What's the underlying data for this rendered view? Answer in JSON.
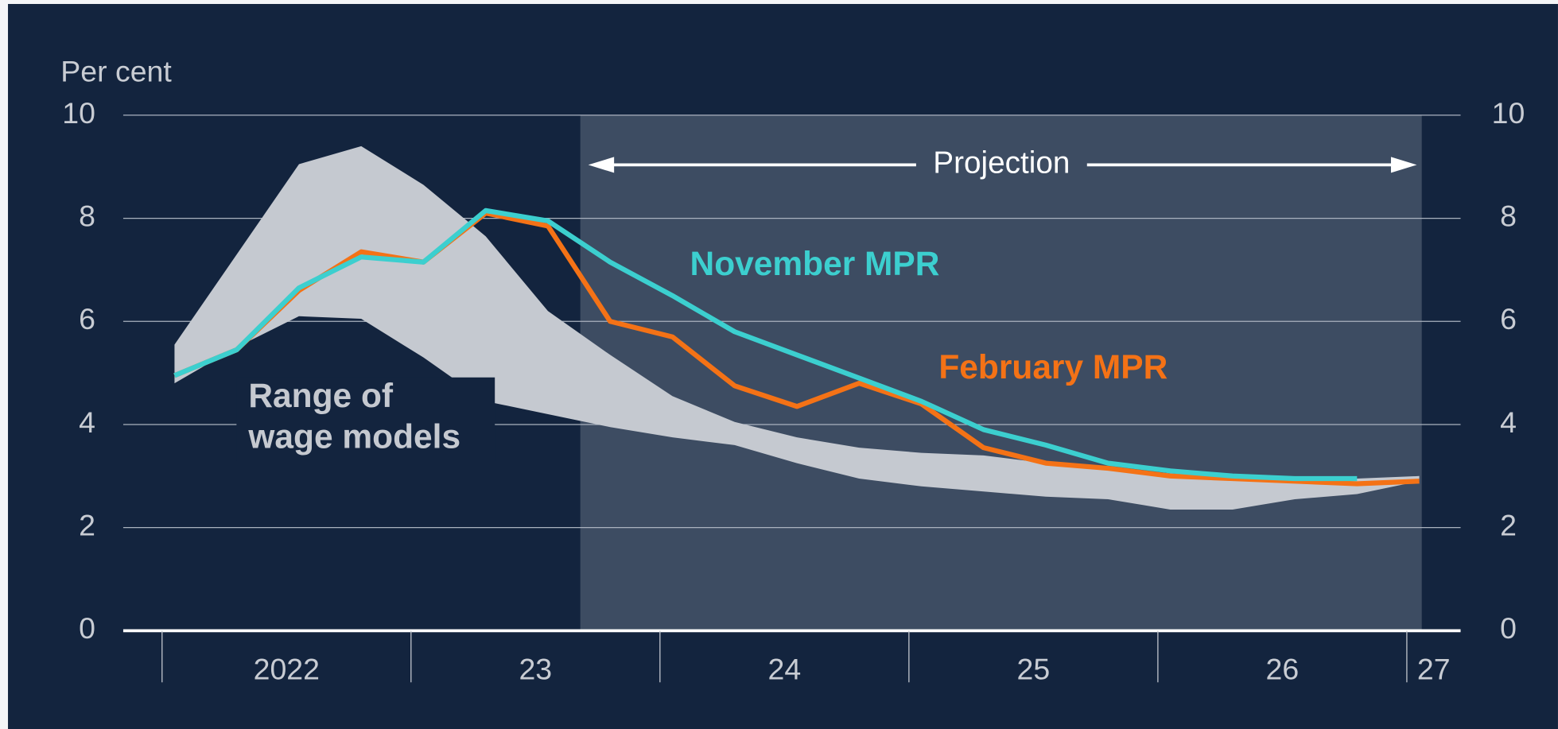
{
  "chart_data": {
    "type": "line",
    "y_label": "Per cent",
    "annotation": "Projection",
    "shaded_region": [
      2023.68,
      2027.06
    ],
    "x": [
      2022.05,
      2022.3,
      2022.55,
      2022.8,
      2023.05,
      2023.3,
      2023.55,
      2023.8,
      2024.05,
      2024.3,
      2024.55,
      2024.8,
      2025.05,
      2025.3,
      2025.55,
      2025.8,
      2026.05,
      2026.3,
      2026.55,
      2026.8,
      2027.05
    ],
    "xlim": [
      2021.844,
      2027.216
    ],
    "xticks": [
      2022,
      {
        "value": 2023,
        "label": "23"
      },
      {
        "value": 2024,
        "label": "24"
      },
      {
        "value": 2025,
        "label": "25"
      },
      {
        "value": 2026,
        "label": "26"
      },
      {
        "value": 2027,
        "label": "27"
      }
    ],
    "ylim": [
      0,
      10
    ],
    "yticks": [
      0,
      2,
      4,
      6,
      8,
      10
    ],
    "y2lim": [
      0,
      10
    ],
    "y2ticks": [
      0,
      2,
      4,
      6,
      8,
      10
    ],
    "grid": true,
    "band": {
      "label": [
        "Range of",
        "wage models"
      ],
      "color": "#c5c9d0",
      "upper": [
        5.55,
        7.3,
        9.05,
        9.4,
        8.65,
        7.65,
        6.2,
        5.35,
        4.55,
        4.05,
        3.75,
        3.55,
        3.45,
        3.4,
        3.25,
        3.15,
        3.05,
        2.95,
        2.9,
        2.95,
        3.0
      ],
      "lower": [
        4.8,
        5.5,
        6.1,
        6.05,
        5.3,
        4.45,
        4.2,
        3.95,
        3.75,
        3.6,
        3.25,
        2.95,
        2.8,
        2.7,
        2.6,
        2.55,
        2.35,
        2.35,
        2.55,
        2.65,
        2.9
      ]
    },
    "series": [
      {
        "name": "February MPR",
        "color": "#f47216",
        "values": [
          4.95,
          5.45,
          6.6,
          7.35,
          7.15,
          8.1,
          7.85,
          6.0,
          5.7,
          4.75,
          4.35,
          4.8,
          4.4,
          3.55,
          3.25,
          3.15,
          3.0,
          2.95,
          2.9,
          2.85,
          2.9
        ]
      },
      {
        "name": "November MPR",
        "color": "#3ccfcf",
        "values": [
          4.95,
          5.45,
          6.65,
          7.25,
          7.15,
          8.15,
          7.95,
          7.15,
          6.5,
          5.8,
          5.35,
          4.9,
          4.45,
          3.9,
          3.6,
          3.25,
          3.1,
          3.0,
          2.95,
          2.95,
          null
        ]
      }
    ]
  }
}
